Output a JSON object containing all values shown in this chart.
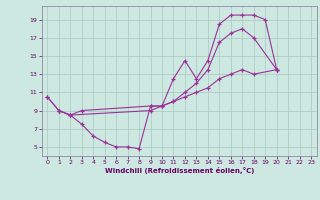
{
  "xlabel": "Windchill (Refroidissement éolien,°C)",
  "background_color": "#cde8e0",
  "grid_color": "#a8c8c0",
  "line_color": "#993399",
  "spine_color": "#887799",
  "xlim": [
    -0.5,
    23.5
  ],
  "ylim": [
    4.0,
    20.5
  ],
  "xticks": [
    0,
    1,
    2,
    3,
    4,
    5,
    6,
    7,
    8,
    9,
    10,
    11,
    12,
    13,
    14,
    15,
    16,
    17,
    18,
    19,
    20,
    21,
    22,
    23
  ],
  "yticks": [
    5,
    7,
    9,
    11,
    13,
    15,
    17,
    19
  ],
  "line1_x": [
    0,
    1,
    2,
    3,
    4,
    5,
    6,
    7,
    8,
    9,
    10,
    11,
    12,
    13,
    14,
    15,
    16,
    17,
    18,
    19,
    20
  ],
  "line1_y": [
    10.5,
    9.0,
    8.5,
    7.5,
    6.2,
    5.5,
    5.0,
    5.0,
    4.8,
    9.5,
    9.5,
    12.5,
    14.5,
    12.5,
    14.5,
    18.5,
    19.5,
    19.5,
    19.5,
    19.0,
    13.5
  ],
  "line2_x": [
    0,
    1,
    2,
    3,
    9,
    10,
    11,
    12,
    13,
    14,
    15,
    16,
    17,
    18,
    20
  ],
  "line2_y": [
    10.5,
    9.0,
    8.5,
    9.0,
    9.5,
    9.5,
    10.0,
    11.0,
    12.0,
    13.5,
    16.5,
    17.5,
    18.0,
    17.0,
    13.5
  ],
  "line3_x": [
    1,
    2,
    9,
    10,
    11,
    12,
    13,
    14,
    15,
    16,
    17,
    18,
    20
  ],
  "line3_y": [
    9.0,
    8.5,
    9.0,
    9.5,
    10.0,
    10.5,
    11.0,
    11.5,
    12.5,
    13.0,
    13.5,
    13.0,
    13.5
  ]
}
